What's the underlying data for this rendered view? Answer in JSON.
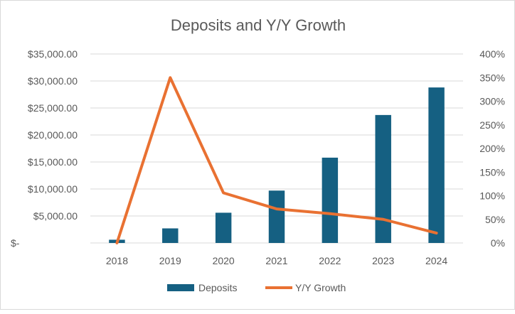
{
  "chart_data": {
    "type": "bar",
    "title": "Deposits and Y/Y Growth",
    "categories": [
      "2018",
      "2019",
      "2020",
      "2021",
      "2022",
      "2023",
      "2024"
    ],
    "series": [
      {
        "name": "Deposits",
        "type": "bar",
        "axis": "left",
        "color": "#156082",
        "values": [
          600,
          2700,
          5600,
          9700,
          15800,
          23700,
          28800
        ]
      },
      {
        "name": "Y/Y Growth",
        "type": "line",
        "axis": "right",
        "color": "#e97132",
        "values": [
          0,
          350,
          106,
          72,
          62,
          50,
          21
        ]
      }
    ],
    "y_left": {
      "ylim": [
        0,
        35000
      ],
      "tick_values": [
        0,
        5000,
        10000,
        15000,
        20000,
        25000,
        30000,
        35000
      ],
      "tick_labels": [
        "$-",
        "$5,000.00",
        "$10,000.00",
        "$15,000.00",
        "$20,000.00",
        "$25,000.00",
        "$30,000.00",
        "$35,000.00"
      ]
    },
    "y_right": {
      "ylim": [
        0,
        400
      ],
      "tick_values": [
        0,
        50,
        100,
        150,
        200,
        250,
        300,
        350,
        400
      ],
      "tick_labels": [
        "0%",
        "50%",
        "100%",
        "150%",
        "200%",
        "250%",
        "300%",
        "350%",
        "400%"
      ]
    },
    "grid": true,
    "legend": "bottom",
    "colors": {
      "gridline": "#d9d9d9",
      "text": "#595959"
    }
  }
}
